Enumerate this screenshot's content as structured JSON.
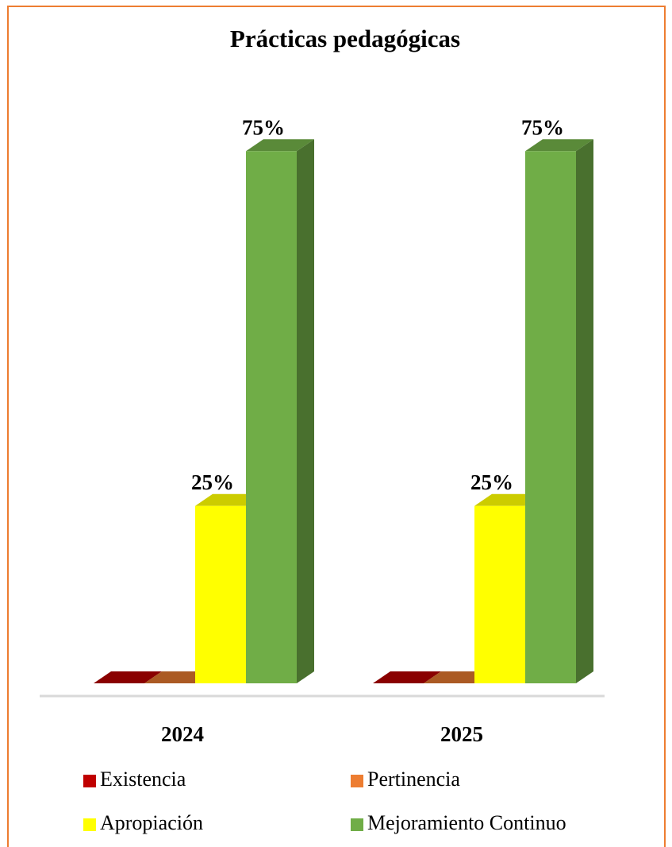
{
  "chart_data": {
    "type": "bar3d",
    "title": "Prácticas pedagógicas",
    "categories": [
      "2024",
      "2025"
    ],
    "series": [
      {
        "name": "Existencia",
        "color": "#c00000",
        "values": [
          0,
          0
        ]
      },
      {
        "name": "Pertinencia",
        "color": "#ed7d31",
        "values": [
          0,
          0
        ]
      },
      {
        "name": "Apropiación",
        "color": "#ffff00",
        "values": [
          25,
          25
        ],
        "value_labels": [
          "25%",
          "25%"
        ]
      },
      {
        "name": "Mejoramiento Continuo",
        "color": "#70ad47",
        "values": [
          75,
          75
        ],
        "value_labels": [
          "75%",
          "75%"
        ]
      }
    ]
  }
}
